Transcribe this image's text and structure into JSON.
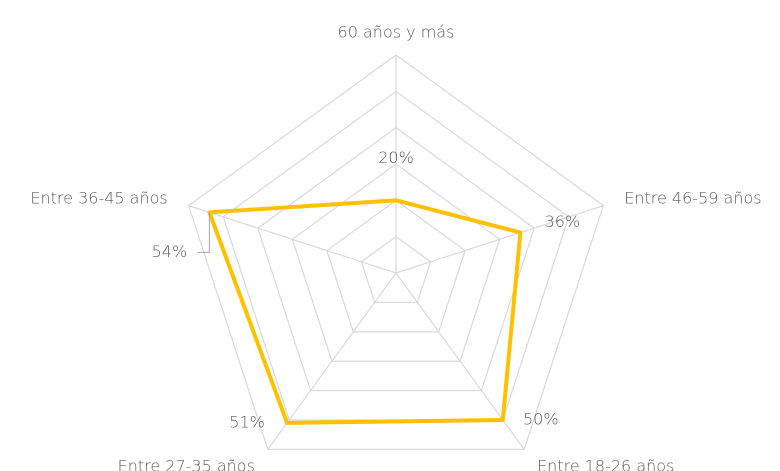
{
  "chart_data": {
    "type": "radar",
    "categories": [
      "60 años y más",
      "Entre 46-59 años",
      "Entre 18-26 años",
      "Entre 27-35 años",
      "Entre 36-45 años"
    ],
    "values": [
      20,
      36,
      50,
      51,
      54
    ],
    "value_labels": [
      "20%",
      "36%",
      "50%",
      "51%",
      "54%"
    ],
    "color": "#FFC000",
    "ylim": [
      0,
      60
    ],
    "yticks": [
      10,
      20,
      30,
      40,
      50,
      60
    ],
    "grid": true
  }
}
